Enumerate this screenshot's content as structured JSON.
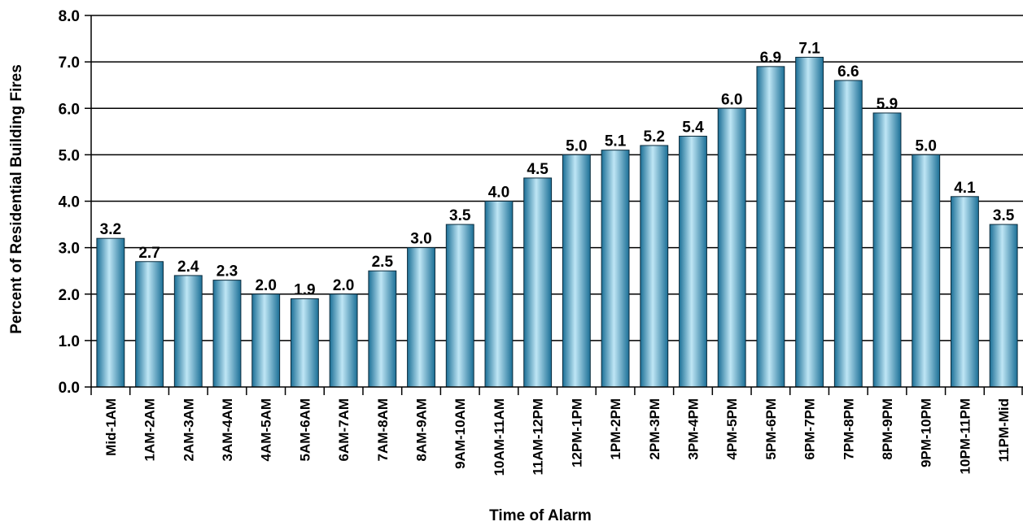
{
  "chart_data": {
    "type": "bar",
    "categories": [
      "Mid-1AM",
      "1AM-2AM",
      "2AM-3AM",
      "3AM-4AM",
      "4AM-5AM",
      "5AM-6AM",
      "6AM-7AM",
      "7AM-8AM",
      "8AM-9AM",
      "9AM-10AM",
      "10AM-11AM",
      "11AM-12PM",
      "12PM-1PM",
      "1PM-2PM",
      "2PM-3PM",
      "3PM-4PM",
      "4PM-5PM",
      "5PM-6PM",
      "6PM-7PM",
      "7PM-8PM",
      "8PM-9PM",
      "9PM-10PM",
      "10PM-11PM",
      "11PM-Mid"
    ],
    "values": [
      3.2,
      2.7,
      2.4,
      2.3,
      2.0,
      1.9,
      2.0,
      2.5,
      3.0,
      3.5,
      4.0,
      4.5,
      5.0,
      5.1,
      5.2,
      5.4,
      6.0,
      6.9,
      7.1,
      6.6,
      5.9,
      5.0,
      4.1,
      3.5
    ],
    "data_labels": [
      "3.2",
      "2.7",
      "2.4",
      "2.3",
      "2.0",
      "1.9",
      "2.0",
      "2.5",
      "3.0",
      "3.5",
      "4.0",
      "4.5",
      "5.0",
      "5.1",
      "5.2",
      "5.4",
      "6.0",
      "6.9",
      "7.1",
      "6.6",
      "5.9",
      "5.0",
      "4.1",
      "3.5"
    ],
    "title": "",
    "xlabel": "Time of Alarm",
    "ylabel": "Percent of Residential Building Fires",
    "ylim": [
      0,
      8
    ],
    "yticks": [
      0,
      1,
      2,
      3,
      4,
      5,
      6,
      7,
      8
    ],
    "ytick_labels": [
      "0.0",
      "1.0",
      "2.0",
      "3.0",
      "4.0",
      "5.0",
      "6.0",
      "7.0",
      "8.0"
    ],
    "grid": true,
    "legend": "none",
    "colors": {
      "bar_dark": "#1b6f96",
      "bar_light": "#bfe6f5",
      "bar_edge": "#0b2b3c",
      "grid": "#000000",
      "text": "#000000"
    }
  }
}
